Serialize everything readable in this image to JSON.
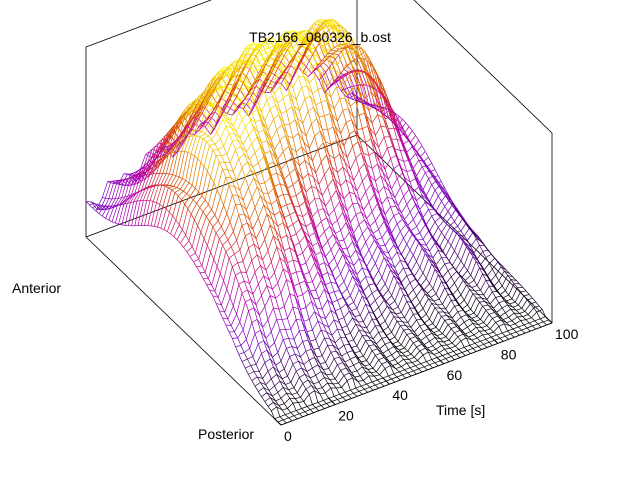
{
  "chart_data": {
    "type": "surface",
    "title": "TB2166_080326_b.ost",
    "x_axis": {
      "label": "Time [s]",
      "range": [
        0,
        100
      ],
      "ticks": [
        0,
        20,
        40,
        60,
        80,
        100
      ],
      "tick_labels": [
        "0",
        "20",
        "40",
        "60",
        "80",
        "100"
      ]
    },
    "y_axis": {
      "end_labels": [
        "Anterior",
        "Posterior"
      ]
    },
    "surface": {
      "time_samples": [
        0,
        5,
        10,
        15,
        20,
        25,
        30,
        35,
        40,
        45,
        50,
        55,
        60,
        65,
        70,
        75,
        80,
        85,
        90,
        95,
        100
      ],
      "anterior_posterior_samples": [
        0.0,
        0.1,
        0.2,
        0.3,
        0.4,
        0.5,
        0.6,
        0.7,
        0.8,
        0.9,
        1.0
      ],
      "z_range": [
        0,
        1
      ],
      "peak_1": {
        "time": 18,
        "position": 0.55,
        "height": 0.72
      },
      "peak_2": {
        "time": 50,
        "position": 0.72,
        "height": 0.85
      },
      "ridge": {
        "time": 80,
        "position": 0.8,
        "height": 0.55
      }
    },
    "colormap": [
      "#000000",
      "#7f00c8",
      "#c000a0",
      "#d84000",
      "#e8a000",
      "#ffff00"
    ],
    "grid": false,
    "legend": "none"
  }
}
